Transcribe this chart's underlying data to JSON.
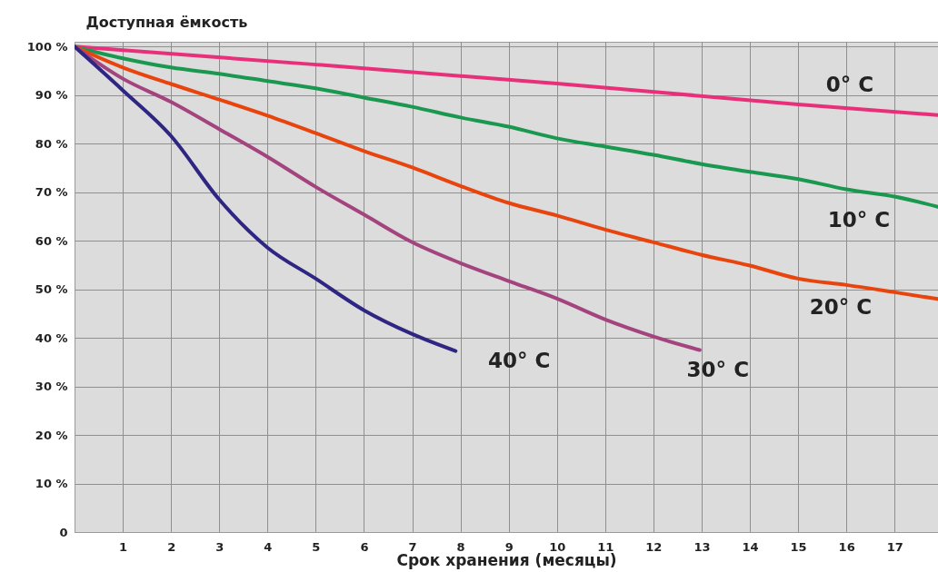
{
  "chart_data": {
    "type": "line",
    "ylabel": "Доступная ёмкость",
    "xlabel": "Срок хранения (месяцы)",
    "xlim": [
      0,
      17.9
    ],
    "ylim": [
      0,
      101
    ],
    "xticks": [
      1,
      2,
      3,
      4,
      5,
      6,
      7,
      8,
      9,
      10,
      11,
      12,
      13,
      14,
      15,
      16,
      17
    ],
    "yticks": [
      0,
      {
        "value": 10,
        "label": "10 %"
      },
      {
        "value": 20,
        "label": "20 %"
      },
      {
        "value": 30,
        "label": "30 %"
      },
      {
        "value": 40,
        "label": "40 %"
      },
      {
        "value": 50,
        "label": "50 %"
      },
      {
        "value": 60,
        "label": "60 %"
      },
      {
        "value": 70,
        "label": "70 %"
      },
      {
        "value": 80,
        "label": "80 %"
      },
      {
        "value": 90,
        "label": "90 %"
      },
      {
        "value": 100,
        "label": "100 %"
      }
    ],
    "grid": true,
    "legend": false,
    "marker": "none",
    "line_style": "solid",
    "series": [
      {
        "name": "0° C",
        "color": "#e8307a",
        "x": [
          0,
          5,
          10,
          15,
          17.9
        ],
        "values": [
          100,
          96.3,
          92.4,
          88.1,
          85.9
        ]
      },
      {
        "name": "10° C",
        "color": "#1a9850",
        "x": [
          0,
          1,
          2,
          3,
          4,
          5,
          6,
          7,
          8,
          9,
          10,
          11,
          12,
          13,
          14,
          15,
          16,
          17,
          17.9
        ],
        "values": [
          100,
          97.6,
          95.7,
          94.4,
          92.9,
          91.4,
          89.5,
          87.6,
          85.4,
          83.5,
          81.1,
          79.4,
          77.7,
          75.8,
          74.2,
          72.7,
          70.6,
          69.1,
          67
        ]
      },
      {
        "name": "20° C",
        "color": "#e8440e",
        "x": [
          0,
          1,
          2,
          3,
          4,
          5,
          6,
          7,
          8,
          9,
          10,
          11,
          12,
          13,
          14,
          15,
          16,
          17,
          17.9
        ],
        "values": [
          100,
          95.7,
          92.3,
          89.1,
          85.8,
          82.2,
          78.5,
          75.1,
          71.3,
          67.8,
          65.2,
          62.3,
          59.7,
          57.1,
          54.9,
          52.2,
          50.9,
          49.4,
          48
        ]
      },
      {
        "name": "30° C",
        "color": "#a4447e",
        "x": [
          0,
          1,
          2,
          3,
          4,
          5,
          6,
          7,
          8,
          9,
          10,
          11,
          12,
          12.96
        ],
        "values": [
          100,
          93.4,
          88.6,
          83,
          77.3,
          71.1,
          65.4,
          59.7,
          55.4,
          51.7,
          48.1,
          43.8,
          40.3,
          37.5
        ]
      },
      {
        "name": "40° C",
        "color": "#2e2682",
        "x": [
          0,
          1,
          2,
          3,
          4,
          5,
          6,
          7,
          7.9
        ],
        "values": [
          100,
          91,
          81.6,
          68.5,
          58.6,
          52.2,
          45.7,
          40.8,
          37.3
        ]
      }
    ]
  }
}
